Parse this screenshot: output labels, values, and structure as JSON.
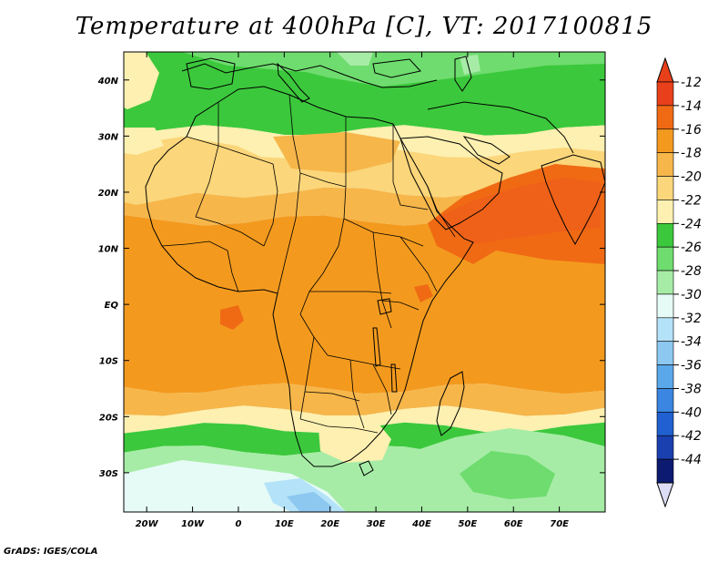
{
  "title": "Temperature at 400hPa [C], VT: 2017100815",
  "credit": "GrADS: IGES/COLA",
  "map": {
    "lon_range": [
      -25,
      80
    ],
    "lat_range": [
      -37,
      45
    ],
    "lat_ticks": [
      {
        "lat": 40,
        "label": "40N"
      },
      {
        "lat": 30,
        "label": "30N"
      },
      {
        "lat": 20,
        "label": "20N"
      },
      {
        "lat": 10,
        "label": "10N"
      },
      {
        "lat": 0,
        "label": "EQ"
      },
      {
        "lat": -10,
        "label": "10S"
      },
      {
        "lat": -20,
        "label": "20S"
      },
      {
        "lat": -30,
        "label": "30S"
      }
    ],
    "lon_ticks": [
      {
        "lon": -20,
        "label": "20W"
      },
      {
        "lon": -10,
        "label": "10W"
      },
      {
        "lon": 0,
        "label": "0"
      },
      {
        "lon": 10,
        "label": "10E"
      },
      {
        "lon": 20,
        "label": "20E"
      },
      {
        "lon": 30,
        "label": "30E"
      },
      {
        "lon": 40,
        "label": "40E"
      },
      {
        "lon": 50,
        "label": "50E"
      },
      {
        "lon": 60,
        "label": "60E"
      },
      {
        "lon": 70,
        "label": "70E"
      }
    ]
  },
  "colorbar": {
    "levels": [
      {
        "label": "-12",
        "color": "#e8401a"
      },
      {
        "label": "-14",
        "color": "#f06a14"
      },
      {
        "label": "-16",
        "color": "#f39a1e"
      },
      {
        "label": "-18",
        "color": "#f6b64a"
      },
      {
        "label": "-20",
        "color": "#fbd67a"
      },
      {
        "label": "-22",
        "color": "#fdf0b0"
      },
      {
        "label": "-24",
        "color": "#3cc83c"
      },
      {
        "label": "-26",
        "color": "#6edc6e"
      },
      {
        "label": "-28",
        "color": "#a6eca6"
      },
      {
        "label": "-30",
        "color": "#e6fbf6"
      },
      {
        "label": "-32",
        "color": "#b4e2f8"
      },
      {
        "label": "-34",
        "color": "#8cc8f0"
      },
      {
        "label": "-36",
        "color": "#5aa8ea"
      },
      {
        "label": "-38",
        "color": "#3a86e0"
      },
      {
        "label": "-40",
        "color": "#2060d0"
      },
      {
        "label": "-42",
        "color": "#1a40b0"
      },
      {
        "label": "-44",
        "color": "#0c1a70"
      }
    ],
    "top_arrow_color": "#e8401a",
    "bottom_arrow_color": "#dcdcf4"
  },
  "temperature_bands": [
    {
      "from": 45,
      "to": 37,
      "level": "-26"
    },
    {
      "from": 37,
      "to": 31,
      "level": "-24"
    },
    {
      "from": 31,
      "to": 27,
      "level": "-22"
    },
    {
      "from": 27,
      "to": 20,
      "level": "-20"
    },
    {
      "from": 20,
      "to": 15,
      "level": "-18"
    },
    {
      "from": 15,
      "to": -15,
      "level": "-16"
    },
    {
      "from": -15,
      "to": -19,
      "level": "-18"
    },
    {
      "from": -19,
      "to": -22,
      "level": "-22"
    },
    {
      "from": -22,
      "to": -26,
      "level": "-24"
    },
    {
      "from": -26,
      "to": -37,
      "level": "-28"
    }
  ],
  "temperature_patches": [
    {
      "region": "Arabian Sea / Horn of Africa",
      "level": "-14"
    },
    {
      "region": "Gulf of Guinea",
      "level": "-14"
    },
    {
      "region": "Lake Victoria area",
      "level": "-14"
    },
    {
      "region": "Southwest of South Africa",
      "level": "-30"
    },
    {
      "region": "Southern Indian Ocean",
      "level": "-26"
    },
    {
      "region": "Mediterranean north",
      "level": "-28"
    }
  ]
}
